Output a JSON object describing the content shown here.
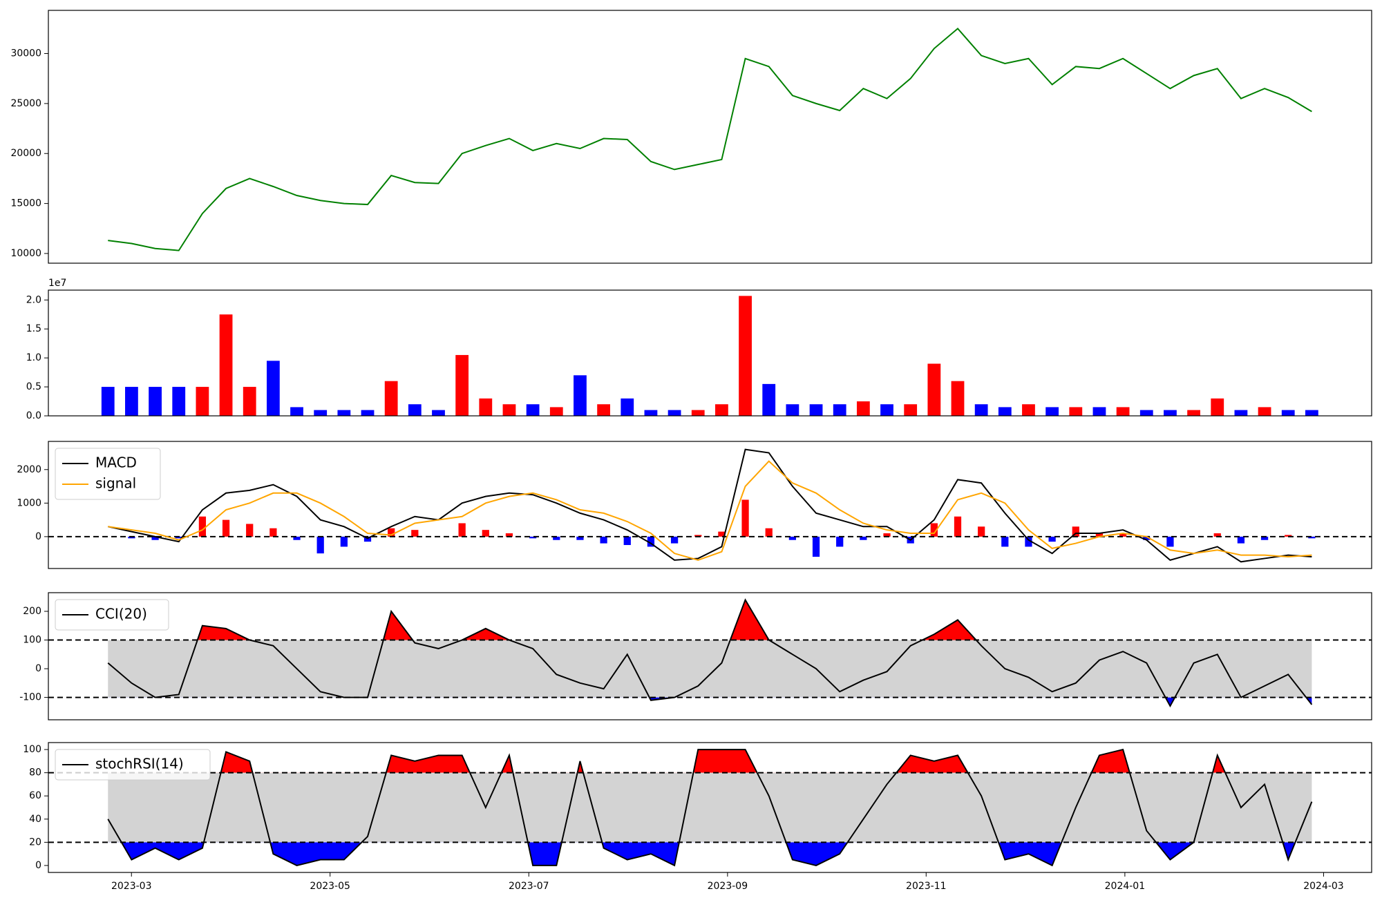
{
  "chart_data": [
    {
      "type": "line",
      "x": [
        2023.147,
        2023.1668,
        2023.1866,
        2023.2064,
        2023.2262,
        2023.246,
        2023.2658,
        2023.2856,
        2023.3054,
        2023.3252,
        2023.345,
        2023.3648,
        2023.3846,
        2023.4044,
        2023.4242,
        2023.444,
        2023.4638,
        2023.4836,
        2023.5034,
        2023.5232,
        2023.543,
        2023.5628,
        2023.5826,
        2023.6024,
        2023.6222,
        2023.642,
        2023.6618,
        2023.6816,
        2023.7014,
        2023.7212,
        2023.741,
        2023.7608,
        2023.7806,
        2023.8004,
        2023.8202,
        2023.84,
        2023.8598,
        2023.8796,
        2023.8994,
        2023.9192,
        2023.939,
        2023.9588,
        2023.9786,
        2023.9984,
        2024.0182,
        2024.038,
        2024.0578,
        2024.0776,
        2024.0974,
        2024.1172,
        2024.137,
        2024.1568
      ],
      "values": [
        11300,
        11000,
        10500,
        10300,
        14000,
        16500,
        17500,
        16700,
        15800,
        15300,
        15000,
        14900,
        17800,
        17100,
        17000,
        20000,
        20800,
        21500,
        20300,
        21000,
        20500,
        21500,
        21400,
        19200,
        18400,
        18900,
        19400,
        29500,
        28700,
        25800,
        25000,
        24300,
        26500,
        25500,
        27500,
        30500,
        32500,
        29800,
        29000,
        29500,
        26900,
        28700,
        28500,
        29500,
        28000,
        26500,
        27800,
        28500,
        25500,
        26500,
        25600,
        24200
      ],
      "color": "green",
      "xlim": [
        2023.097,
        2024.207
      ],
      "ylim": [
        9030,
        34320
      ],
      "yticks": [
        10000,
        15000,
        20000,
        25000,
        30000
      ]
    },
    {
      "type": "bar",
      "x": [
        2023.147,
        2023.1668,
        2023.1866,
        2023.2064,
        2023.2262,
        2023.246,
        2023.2658,
        2023.2856,
        2023.3054,
        2023.3252,
        2023.345,
        2023.3648,
        2023.3846,
        2023.4044,
        2023.4242,
        2023.444,
        2023.4638,
        2023.4836,
        2023.5034,
        2023.5232,
        2023.543,
        2023.5628,
        2023.5826,
        2023.6024,
        2023.6222,
        2023.642,
        2023.6618,
        2023.6816,
        2023.7014,
        2023.7212,
        2023.741,
        2023.7608,
        2023.7806,
        2023.8004,
        2023.8202,
        2023.84,
        2023.8598,
        2023.8796,
        2023.8994,
        2023.9192,
        2023.939,
        2023.9588,
        2023.9786,
        2023.9984,
        2024.0182,
        2024.038,
        2024.0578,
        2024.0776,
        2024.0974,
        2024.1172,
        2024.137,
        2024.1568
      ],
      "values": [
        0.5,
        0.5,
        0.5,
        0.5,
        0.5,
        1.75,
        0.5,
        0.95,
        0.15,
        0.1,
        0.1,
        0.1,
        0.6,
        0.2,
        0.1,
        1.05,
        0.3,
        0.2,
        0.2,
        0.15,
        0.7,
        0.2,
        0.3,
        0.1,
        0.1,
        0.1,
        0.2,
        2.07,
        0.55,
        0.2,
        0.2,
        0.2,
        0.25,
        0.2,
        0.2,
        0.9,
        0.6,
        0.2,
        0.15,
        0.2,
        0.15,
        0.15,
        0.15,
        0.15,
        0.1,
        0.1,
        0.1,
        0.3,
        0.1,
        0.15,
        0.1,
        0.1
      ],
      "colors": [
        "blue",
        "blue",
        "blue",
        "blue",
        "red",
        "red",
        "red",
        "blue",
        "blue",
        "blue",
        "blue",
        "blue",
        "red",
        "blue",
        "blue",
        "red",
        "red",
        "red",
        "blue",
        "red",
        "blue",
        "red",
        "blue",
        "blue",
        "blue",
        "red",
        "red",
        "red",
        "blue",
        "blue",
        "blue",
        "blue",
        "red",
        "blue",
        "red",
        "red",
        "red",
        "blue",
        "blue",
        "red",
        "blue",
        "red",
        "blue",
        "red",
        "blue",
        "blue",
        "red",
        "red",
        "blue",
        "red",
        "blue",
        "blue"
      ],
      "offset_label": "1e7",
      "xlim": [
        2023.097,
        2024.207
      ],
      "ylim": [
        0,
        2.17
      ],
      "yticks": [
        {
          "value": 0,
          "label": "0.0"
        },
        0.5,
        {
          "value": 1,
          "label": "1.0"
        },
        1.5,
        {
          "value": 2,
          "label": "2.0"
        }
      ]
    },
    {
      "type": "macd",
      "x": [
        2023.147,
        2023.1668,
        2023.1866,
        2023.2064,
        2023.2262,
        2023.246,
        2023.2658,
        2023.2856,
        2023.3054,
        2023.3252,
        2023.345,
        2023.3648,
        2023.3846,
        2023.4044,
        2023.4242,
        2023.444,
        2023.4638,
        2023.4836,
        2023.5034,
        2023.5232,
        2023.543,
        2023.5628,
        2023.5826,
        2023.6024,
        2023.6222,
        2023.642,
        2023.6618,
        2023.6816,
        2023.7014,
        2023.7212,
        2023.741,
        2023.7608,
        2023.7806,
        2023.8004,
        2023.8202,
        2023.84,
        2023.8598,
        2023.8796,
        2023.8994,
        2023.9192,
        2023.939,
        2023.9588,
        2023.9786,
        2023.9984,
        2024.0182,
        2024.038,
        2024.0578,
        2024.0776,
        2024.0974,
        2024.1172,
        2024.137,
        2024.1568
      ],
      "series": [
        {
          "name": "MACD",
          "color": "black",
          "values": [
            300,
            150,
            0,
            -150,
            800,
            1300,
            1380,
            1550,
            1200,
            500,
            300,
            -50,
            300,
            600,
            500,
            1000,
            1200,
            1300,
            1250,
            1000,
            700,
            500,
            200,
            -200,
            -700,
            -650,
            -300,
            2600,
            2500,
            1500,
            700,
            500,
            300,
            300,
            -100,
            500,
            1700,
            1600,
            700,
            -100,
            -500,
            100,
            100,
            200,
            -100,
            -700,
            -500,
            -300,
            -750,
            -650,
            -550,
            -600
          ]
        },
        {
          "name": "signal",
          "color": "orange",
          "values": [
            300,
            200,
            100,
            -100,
            200,
            800,
            1000,
            1300,
            1300,
            1000,
            600,
            100,
            50,
            400,
            500,
            600,
            1000,
            1200,
            1300,
            1100,
            800,
            700,
            450,
            100,
            -500,
            -700,
            -450,
            1500,
            2250,
            1600,
            1300,
            800,
            400,
            200,
            100,
            100,
            1100,
            1300,
            1000,
            200,
            -350,
            -200,
            0,
            100,
            0,
            -400,
            -500,
            -400,
            -550,
            -550,
            -600,
            -550
          ]
        }
      ],
      "histogram": {
        "values": [
          0,
          -50,
          -100,
          -50,
          600,
          500,
          380,
          250,
          -100,
          -500,
          -300,
          -150,
          250,
          200,
          0,
          400,
          200,
          100,
          -50,
          -100,
          -100,
          -200,
          -250,
          -300,
          -200,
          50,
          150,
          1100,
          250,
          -100,
          -600,
          -300,
          -100,
          100,
          -200,
          400,
          600,
          300,
          -300,
          -300,
          -150,
          300,
          100,
          100,
          -100,
          -300,
          0,
          100,
          -200,
          -100,
          50,
          -50
        ],
        "up_color": "red",
        "down_color": "blue"
      },
      "zero_line": true,
      "legend": "upper left",
      "xlim": [
        2023.097,
        2024.207
      ],
      "ylim": [
        -950,
        2840
      ],
      "yticks": [
        0,
        1000,
        2000
      ]
    },
    {
      "type": "oscillator",
      "x": [
        2023.147,
        2023.1668,
        2023.1866,
        2023.2064,
        2023.2262,
        2023.246,
        2023.2658,
        2023.2856,
        2023.3054,
        2023.3252,
        2023.345,
        2023.3648,
        2023.3846,
        2023.4044,
        2023.4242,
        2023.444,
        2023.4638,
        2023.4836,
        2023.5034,
        2023.5232,
        2023.543,
        2023.5628,
        2023.5826,
        2023.6024,
        2023.6222,
        2023.642,
        2023.6618,
        2023.6816,
        2023.7014,
        2023.7212,
        2023.741,
        2023.7608,
        2023.7806,
        2023.8004,
        2023.8202,
        2023.84,
        2023.8598,
        2023.8796,
        2023.8994,
        2023.9192,
        2023.939,
        2023.9588,
        2023.9786,
        2023.9984,
        2024.0182,
        2024.038,
        2024.0578,
        2024.0776,
        2024.0974,
        2024.1172,
        2024.137,
        2024.1568
      ],
      "series": [
        {
          "name": "CCI(20)",
          "color": "black",
          "values": [
            20,
            -50,
            -100,
            -90,
            150,
            140,
            100,
            80,
            0,
            -80,
            -100,
            -100,
            200,
            90,
            70,
            100,
            140,
            100,
            70,
            -20,
            -50,
            -70,
            50,
            -110,
            -100,
            -60,
            20,
            240,
            100,
            50,
            0,
            -80,
            -40,
            -10,
            80,
            120,
            170,
            80,
            0,
            -30,
            -80,
            -50,
            30,
            60,
            20,
            -130,
            20,
            50,
            -100,
            -60,
            -20,
            -125
          ]
        }
      ],
      "thresholds": [
        -100,
        100
      ],
      "band_color": "lightgray",
      "above_color": "red",
      "below_color": "blue",
      "legend": "upper left",
      "xlim": [
        2023.097,
        2024.207
      ],
      "ylim": [
        -178,
        265
      ],
      "yticks": [
        -100,
        0,
        100,
        200
      ]
    },
    {
      "type": "oscillator",
      "x": [
        2023.147,
        2023.1668,
        2023.1866,
        2023.2064,
        2023.2262,
        2023.246,
        2023.2658,
        2023.2856,
        2023.3054,
        2023.3252,
        2023.345,
        2023.3648,
        2023.3846,
        2023.4044,
        2023.4242,
        2023.444,
        2023.4638,
        2023.4836,
        2023.5034,
        2023.5232,
        2023.543,
        2023.5628,
        2023.5826,
        2023.6024,
        2023.6222,
        2023.642,
        2023.6618,
        2023.6816,
        2023.7014,
        2023.7212,
        2023.741,
        2023.7608,
        2023.7806,
        2023.8004,
        2023.8202,
        2023.84,
        2023.8598,
        2023.8796,
        2023.8994,
        2023.9192,
        2023.939,
        2023.9588,
        2023.9786,
        2023.9984,
        2024.0182,
        2024.038,
        2024.0578,
        2024.0776,
        2024.0974,
        2024.1172,
        2024.137,
        2024.1568
      ],
      "series": [
        {
          "name": "stochRSI(14)",
          "color": "black",
          "values": [
            40,
            5,
            15,
            5,
            15,
            98,
            90,
            10,
            0,
            5,
            5,
            25,
            95,
            90,
            95,
            95,
            50,
            95,
            0,
            0,
            90,
            15,
            5,
            10,
            0,
            100,
            100,
            100,
            60,
            5,
            0,
            10,
            40,
            70,
            95,
            90,
            95,
            60,
            5,
            10,
            0,
            50,
            95,
            100,
            30,
            5,
            20,
            95,
            50,
            70,
            5,
            55
          ]
        }
      ],
      "thresholds": [
        20,
        80
      ],
      "band_color": "lightgray",
      "above_color": "red",
      "below_color": "blue",
      "legend": "upper left",
      "xlim": [
        2023.097,
        2024.207
      ],
      "ylim": [
        -6,
        106
      ],
      "yticks": [
        0,
        20,
        40,
        60,
        80,
        100
      ],
      "xticks": [
        {
          "value": 2023.1667,
          "label": "2023-03"
        },
        {
          "value": 2023.3333,
          "label": "2023-05"
        },
        {
          "value": 2023.5,
          "label": "2023-07"
        },
        {
          "value": 2023.6667,
          "label": "2023-09"
        },
        {
          "value": 2023.8333,
          "label": "2023-11"
        },
        {
          "value": 2024.0,
          "label": "2024-01"
        },
        {
          "value": 2024.1667,
          "label": "2024-03"
        }
      ]
    }
  ]
}
